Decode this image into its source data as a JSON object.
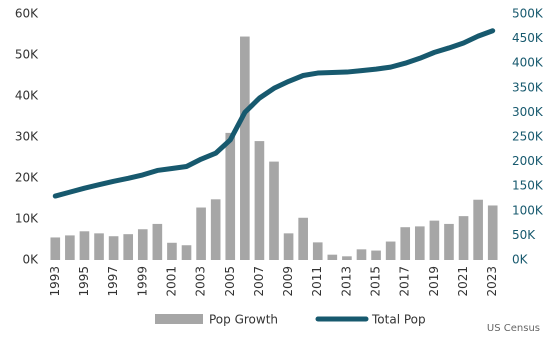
{
  "chart_data": {
    "type": "bar-line",
    "source": "US Census",
    "x": [
      1993,
      1994,
      1995,
      1996,
      1997,
      1998,
      1999,
      2000,
      2001,
      2002,
      2003,
      2004,
      2005,
      2006,
      2007,
      2008,
      2009,
      2010,
      2011,
      2012,
      2013,
      2014,
      2015,
      2016,
      2017,
      2018,
      2019,
      2020,
      2021,
      2022,
      2023
    ],
    "xlim": [
      1992.5,
      2023.5
    ],
    "xticks": [
      1993,
      1995,
      1997,
      1999,
      2001,
      2003,
      2005,
      2007,
      2009,
      2011,
      2013,
      2015,
      2017,
      2019,
      2021,
      2023
    ],
    "series": [
      {
        "name": "Pop Growth",
        "type": "bar",
        "color": "#a6a6a6",
        "axis": "y",
        "values": [
          5500,
          6000,
          7000,
          6500,
          5800,
          6300,
          7500,
          8800,
          4200,
          3600,
          12800,
          14800,
          31000,
          54500,
          29000,
          24000,
          6500,
          10300,
          4300,
          1300,
          900,
          2600,
          2300,
          4500,
          8000,
          8200,
          9600,
          8800,
          10700,
          14700,
          13300
        ]
      },
      {
        "name": "Total Pop",
        "type": "line",
        "color": "#17596e",
        "axis": "y2",
        "values": [
          130000,
          138000,
          146000,
          153000,
          160000,
          166000,
          173000,
          182000,
          186000,
          190000,
          205000,
          217000,
          244000,
          300000,
          329000,
          349000,
          363000,
          375000,
          380000,
          381000,
          382000,
          385000,
          388000,
          392000,
          400000,
          410000,
          422000,
          431000,
          441000,
          455000,
          466000
        ]
      }
    ],
    "ylim": [
      0,
      60000
    ],
    "yticks": [
      {
        "value": 0,
        "label": "0K"
      },
      {
        "value": 10000,
        "label": "10K"
      },
      {
        "value": 20000,
        "label": "20K"
      },
      {
        "value": 30000,
        "label": "30K"
      },
      {
        "value": 40000,
        "label": "40K"
      },
      {
        "value": 50000,
        "label": "50K"
      },
      {
        "value": 60000,
        "label": "60K"
      }
    ],
    "y2lim": [
      0,
      500000
    ],
    "y2ticks": [
      {
        "value": 0,
        "label": "0K"
      },
      {
        "value": 50000,
        "label": "50K"
      },
      {
        "value": 100000,
        "label": "100K"
      },
      {
        "value": 150000,
        "label": "150K"
      },
      {
        "value": 200000,
        "label": "200K"
      },
      {
        "value": 250000,
        "label": "250K"
      },
      {
        "value": 300000,
        "label": "300K"
      },
      {
        "value": 350000,
        "label": "350K"
      },
      {
        "value": 400000,
        "label": "400K"
      },
      {
        "value": 450000,
        "label": "450K"
      },
      {
        "value": 500000,
        "label": "500K"
      }
    ],
    "y2color": "#17596e",
    "grid": false
  }
}
